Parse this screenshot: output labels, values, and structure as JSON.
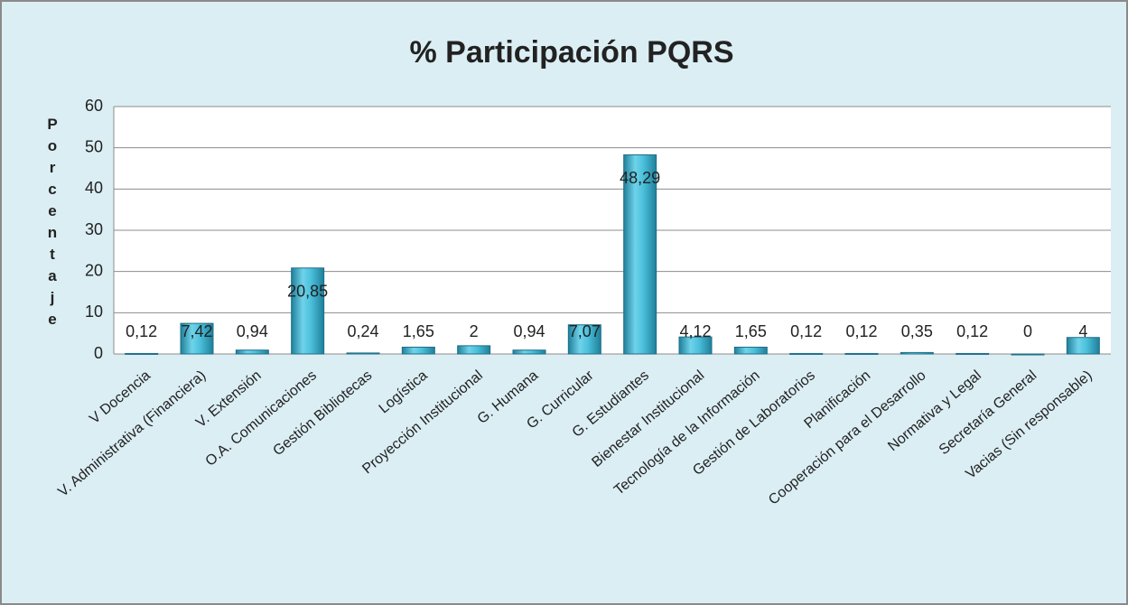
{
  "chart_data": {
    "type": "bar",
    "title": "% Participación PQRS",
    "y_label": "Porcentaje",
    "categories": [
      "V Docencia",
      "V. Administrativa (Financiera)",
      "V. Extensión",
      "O.A. Comunicaciones",
      "Gestión Bibliotecas",
      "Logística",
      "Proyección Institucional",
      "G. Humana",
      "G. Curricular",
      "G. Estudiantes",
      "Bienestar Institucional",
      "Tecnología de la Información",
      "Gestión de Laboratorios",
      "Planificación",
      "Cooperación para el Desarrollo",
      "Normativa y Legal",
      "Secretaría General",
      "Vacias (Sin responsable)"
    ],
    "values": [
      0.12,
      7.42,
      0.94,
      20.85,
      0.24,
      1.65,
      2,
      0.94,
      7.07,
      48.29,
      4.12,
      1.65,
      0.12,
      0.12,
      0.35,
      0.12,
      0,
      4
    ],
    "value_labels": [
      "0,12",
      "7,42",
      "0,94",
      "20,85",
      "0,24",
      "1,65",
      "2",
      "0,94",
      "7,07",
      "48,29",
      "4,12",
      "1,65",
      "0,12",
      "0,12",
      "0,35",
      "0,12",
      "0",
      "4"
    ],
    "color": "#4bc0dc",
    "ylim": [
      0,
      60
    ],
    "yticks": [
      0,
      10,
      20,
      30,
      40,
      50,
      60
    ],
    "grid": true
  }
}
